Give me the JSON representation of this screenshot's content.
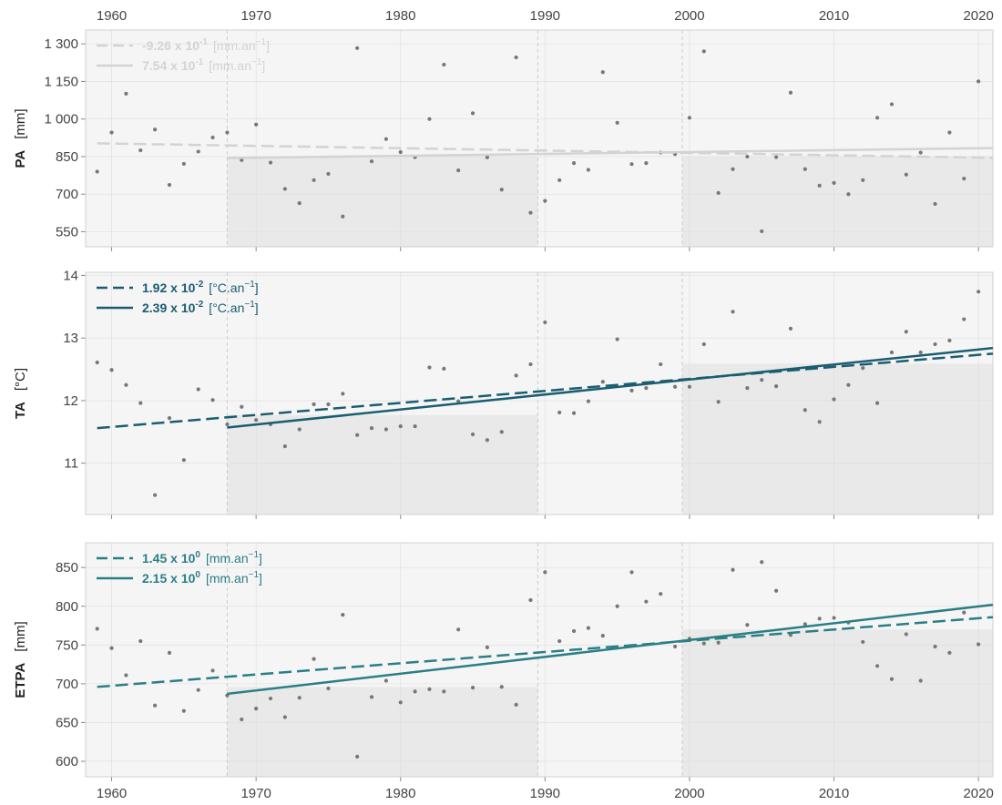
{
  "colors": {
    "panel_bg": "#f5f5f5",
    "shade": "#e9e9e9",
    "grid": "#dddddd",
    "frame": "#d0d0d0",
    "points": "#777777",
    "PA": "#d3d3d3",
    "TA": "#1a5d71",
    "ETPA": "#2a7f85"
  },
  "x_axis": {
    "xlim": [
      1958.2,
      2021.0
    ],
    "ticks": [
      1960,
      1970,
      1980,
      1990,
      2000,
      2010,
      2020
    ],
    "labels": [
      "1960",
      "1970",
      "1980",
      "1990",
      "2000",
      "2010",
      "2020"
    ],
    "position": "top and bottom"
  },
  "periods": [
    {
      "start": 1968,
      "end": 1989.5
    },
    {
      "start": 1999.5,
      "end": 2021.0
    }
  ],
  "chart_data": [
    {
      "type": "scatter",
      "id": "PA",
      "ylabel": "PA",
      "yunit": "[mm]",
      "ylim": [
        490,
        1355
      ],
      "yticks": [
        550,
        700,
        850,
        1000,
        1150,
        1300
      ],
      "yticklabels": [
        "550",
        "700",
        "850",
        "1 000",
        "1 150",
        "1 300"
      ],
      "shaded_means": [
        850,
        850
      ],
      "grid": true,
      "legend_position": "top-left",
      "x": [
        1959,
        1960,
        1961,
        1962,
        1963,
        1964,
        1965,
        1966,
        1967,
        1968,
        1969,
        1970,
        1971,
        1972,
        1973,
        1974,
        1975,
        1976,
        1977,
        1978,
        1979,
        1980,
        1981,
        1982,
        1983,
        1984,
        1985,
        1986,
        1987,
        1988,
        1989,
        1990,
        1991,
        1992,
        1993,
        1994,
        1995,
        1996,
        1997,
        1998,
        1999,
        2000,
        2001,
        2002,
        2003,
        2004,
        2005,
        2006,
        2007,
        2008,
        2009,
        2010,
        2011,
        2012,
        2013,
        2014,
        2015,
        2016,
        2017,
        2018,
        2019,
        2020
      ],
      "y": [
        790,
        946,
        1101,
        875,
        958,
        737,
        821,
        870,
        926,
        946,
        836,
        978,
        826,
        721,
        664,
        756,
        781,
        611,
        1283,
        831,
        920,
        868,
        848,
        1000,
        1217,
        795,
        1023,
        847,
        718,
        1246,
        626,
        673,
        756,
        824,
        797,
        1187,
        985,
        820,
        824,
        866,
        860,
        1005,
        1270,
        705,
        800,
        850,
        552,
        848,
        1105,
        800,
        734,
        745,
        700,
        756,
        1005,
        1059,
        778,
        866,
        661,
        946,
        762,
        1150
      ],
      "trends": [
        {
          "style": "dashed",
          "x": [
            1959,
            2021
          ],
          "y": [
            903,
            845
          ],
          "coef": "-9.26",
          "exp": "-1",
          "unit": "mm.an",
          "unit_exp": "−1"
        },
        {
          "style": "solid",
          "x": [
            1968,
            2021
          ],
          "y": [
            844,
            884
          ],
          "coef": "7.54",
          "exp": "-1",
          "unit": "mm.an",
          "unit_exp": "−1"
        }
      ]
    },
    {
      "type": "scatter",
      "id": "TA",
      "ylabel": "TA",
      "yunit": "[°C]",
      "ylim": [
        10.18,
        14.05
      ],
      "yticks": [
        11,
        12,
        13,
        14
      ],
      "yticklabels": [
        "11",
        "12",
        "13",
        "14"
      ],
      "shaded_means": [
        11.77,
        12.59
      ],
      "grid": true,
      "legend_position": "top-left",
      "x": [
        1959,
        1960,
        1961,
        1962,
        1963,
        1964,
        1965,
        1966,
        1967,
        1968,
        1969,
        1970,
        1971,
        1972,
        1973,
        1974,
        1975,
        1976,
        1977,
        1978,
        1979,
        1980,
        1981,
        1982,
        1983,
        1984,
        1985,
        1986,
        1987,
        1988,
        1989,
        1990,
        1991,
        1992,
        1993,
        1994,
        1995,
        1996,
        1997,
        1998,
        1999,
        2000,
        2001,
        2002,
        2003,
        2004,
        2005,
        2006,
        2007,
        2008,
        2009,
        2010,
        2011,
        2012,
        2013,
        2014,
        2015,
        2016,
        2017,
        2018,
        2019,
        2020
      ],
      "y": [
        12.61,
        12.49,
        12.25,
        11.96,
        10.49,
        11.72,
        11.05,
        12.18,
        12.01,
        11.62,
        11.9,
        11.69,
        11.62,
        11.27,
        11.54,
        11.94,
        11.94,
        12.11,
        11.45,
        11.56,
        11.54,
        11.59,
        11.59,
        12.53,
        12.51,
        11.99,
        11.46,
        11.37,
        11.5,
        12.4,
        12.58,
        13.25,
        11.81,
        11.8,
        11.99,
        12.3,
        12.98,
        12.16,
        12.2,
        12.58,
        12.22,
        12.22,
        12.9,
        11.98,
        13.42,
        12.2,
        12.33,
        12.23,
        13.15,
        11.85,
        11.66,
        12.02,
        12.25,
        12.52,
        11.96,
        12.77,
        13.1,
        12.77,
        12.9,
        12.96,
        13.3,
        13.74
      ],
      "trends": [
        {
          "style": "dashed",
          "x": [
            1959,
            2021
          ],
          "y": [
            11.56,
            12.75
          ],
          "coef": "1.92",
          "exp": "-2",
          "unit": "°C.an",
          "unit_exp": "−1"
        },
        {
          "style": "solid",
          "x": [
            1968,
            2021
          ],
          "y": [
            11.57,
            12.84
          ],
          "coef": "2.39",
          "exp": "-2",
          "unit": "°C.an",
          "unit_exp": "−1"
        }
      ]
    },
    {
      "type": "scatter",
      "id": "ETPA",
      "ylabel": "ETPA",
      "yunit": "[mm]",
      "ylim": [
        580,
        882
      ],
      "yticks": [
        600,
        650,
        700,
        750,
        800,
        850
      ],
      "yticklabels": [
        "600",
        "650",
        "700",
        "750",
        "800",
        "850"
      ],
      "shaded_means": [
        696,
        770
      ],
      "grid": true,
      "legend_position": "top-left",
      "x": [
        1959,
        1960,
        1961,
        1962,
        1963,
        1964,
        1965,
        1966,
        1967,
        1968,
        1969,
        1970,
        1971,
        1972,
        1973,
        1974,
        1975,
        1976,
        1977,
        1978,
        1979,
        1980,
        1981,
        1982,
        1983,
        1984,
        1985,
        1986,
        1987,
        1988,
        1989,
        1990,
        1991,
        1992,
        1993,
        1994,
        1995,
        1996,
        1997,
        1998,
        1999,
        2000,
        2001,
        2002,
        2003,
        2004,
        2005,
        2006,
        2007,
        2008,
        2009,
        2010,
        2011,
        2012,
        2013,
        2014,
        2015,
        2016,
        2017,
        2018,
        2019,
        2020
      ],
      "y": [
        771,
        746,
        711,
        755,
        672,
        740,
        665,
        692,
        717,
        685,
        654,
        668,
        681,
        657,
        682,
        732,
        694,
        789,
        606,
        683,
        704,
        676,
        690,
        693,
        690,
        770,
        695,
        747,
        696,
        673,
        808,
        844,
        755,
        768,
        772,
        762,
        800,
        844,
        806,
        816,
        748,
        758,
        752,
        753,
        847,
        776,
        857,
        820,
        763,
        777,
        784,
        785,
        779,
        754,
        723,
        706,
        764,
        704,
        748,
        740,
        792,
        751
      ],
      "trends": [
        {
          "style": "dashed",
          "x": [
            1959,
            2021
          ],
          "y": [
            696,
            786
          ],
          "coef": "1.45",
          "exp": "0",
          "unit": "mm.an",
          "unit_exp": "−1"
        },
        {
          "style": "solid",
          "x": [
            1968,
            2021
          ],
          "y": [
            687,
            802
          ],
          "coef": "2.15",
          "exp": "0",
          "unit": "mm.an",
          "unit_exp": "−1"
        }
      ]
    }
  ]
}
